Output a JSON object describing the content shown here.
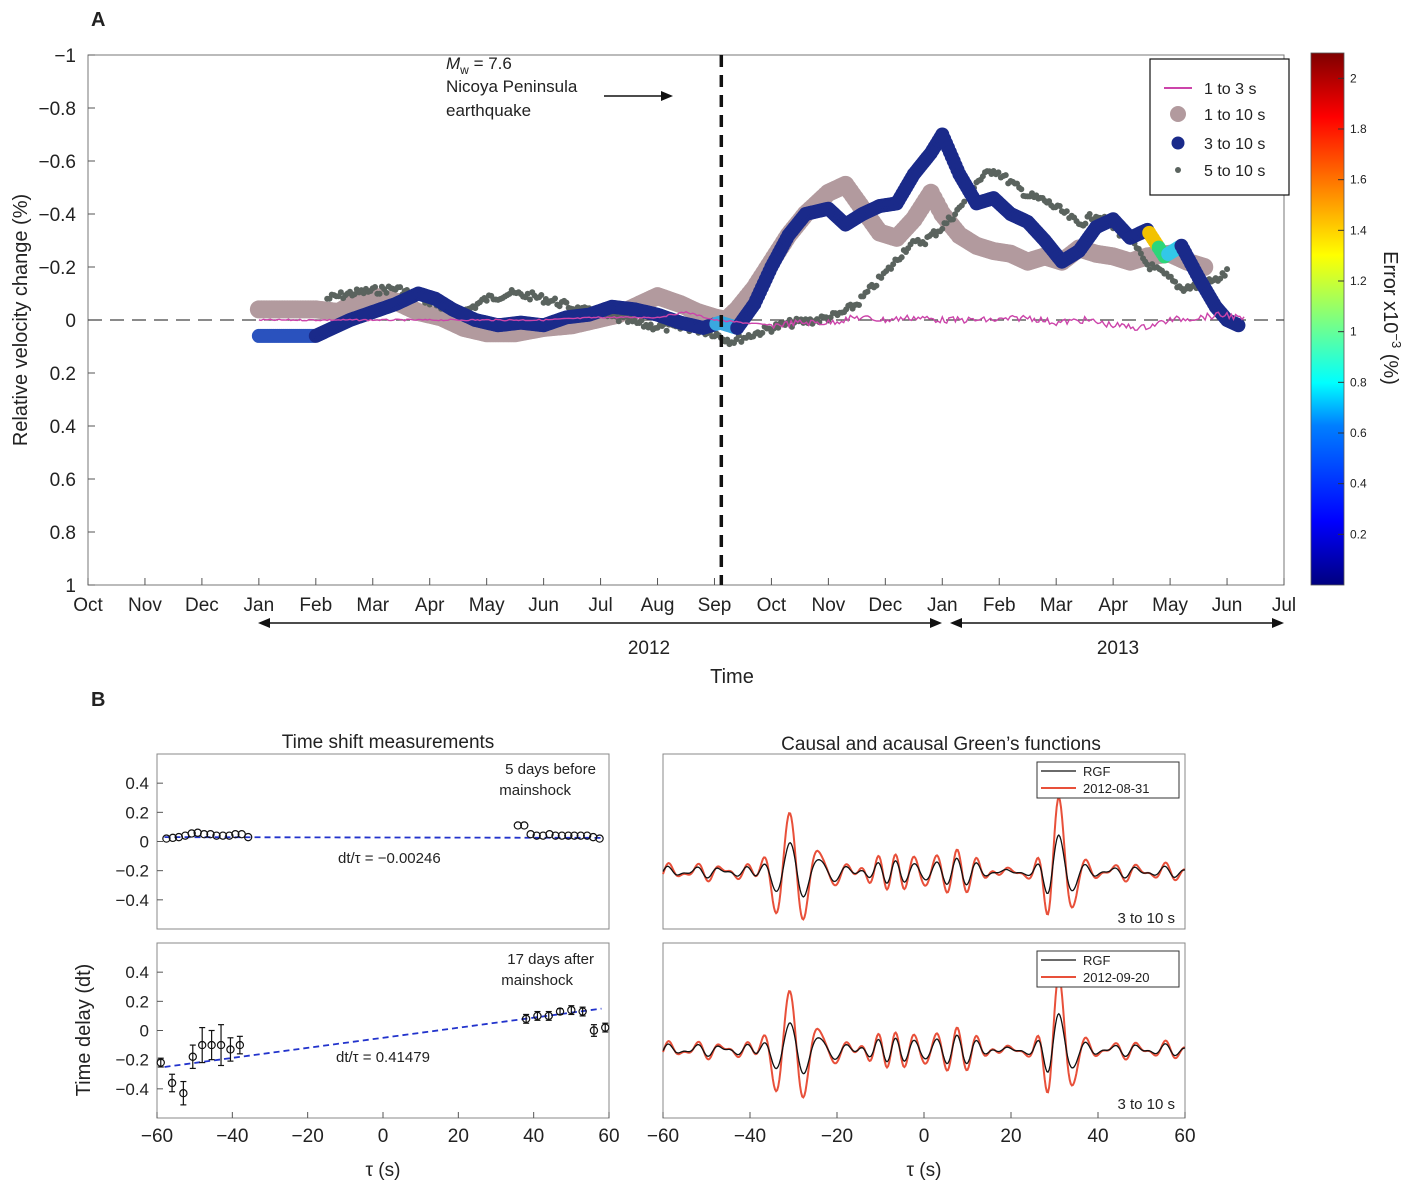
{
  "figure": {
    "panel_a_letter": "A",
    "panel_b_letter": "B"
  },
  "chart_data": [
    {
      "type": "scatter",
      "panel": "A",
      "ylabel": "Relative velocity change (%)",
      "xlabel": "Time",
      "y_inverted": true,
      "ylim": [
        1,
        -1
      ],
      "y_ticks": [
        "−1",
        "−0.8",
        "−0.6",
        "−0.4",
        "−0.2",
        "0",
        "0.2",
        "0.4",
        "0.6",
        "0.8",
        "1"
      ],
      "x_ticks": [
        "Oct",
        "Nov",
        "Dec",
        "Jan",
        "Feb",
        "Mar",
        "Apr",
        "May",
        "Jun",
        "Jul",
        "Aug",
        "Sep",
        "Oct",
        "Nov",
        "Dec",
        "Jan",
        "Feb",
        "Mar",
        "Apr",
        "May",
        "Jun",
        "Jul"
      ],
      "year_labels": [
        "2012",
        "2013"
      ],
      "event_marker": {
        "month_index": 11.12,
        "label_prefix": "M",
        "label_sub": "w",
        "label_value": " = 7.6",
        "label_line2": "Nicoya Peninsula",
        "label_line3": "earthquake"
      },
      "legend": [
        "1 to 3 s",
        "1 to 10 s",
        "3 to 10 s",
        "5 to 10 s"
      ],
      "colorbar": {
        "label": "Error x10",
        "label_exp": "−3",
        "label_unit": " (%)",
        "range": [
          0,
          2.1
        ],
        "ticks": [
          "0.2",
          "0.4",
          "0.6",
          "0.8",
          "1",
          "1.2",
          "1.4",
          "1.6",
          "1.8",
          "2"
        ]
      },
      "series": [
        {
          "name": "1 to 3 s",
          "color": "#cc44aa",
          "points": [
            [
              3.0,
              0.0
            ],
            [
              4.0,
              0.0
            ],
            [
              5.0,
              0.0
            ],
            [
              6.0,
              0.0
            ],
            [
              7.0,
              0.0
            ],
            [
              8.0,
              0.0
            ],
            [
              9.0,
              -0.01
            ],
            [
              10.0,
              -0.01
            ],
            [
              10.5,
              -0.03
            ],
            [
              11.0,
              0.0
            ],
            [
              11.5,
              0.01
            ],
            [
              12.0,
              0.02
            ],
            [
              12.5,
              0.01
            ],
            [
              13.0,
              0.01
            ],
            [
              13.5,
              -0.01
            ],
            [
              14.0,
              0.0
            ],
            [
              14.5,
              -0.01
            ],
            [
              15.0,
              0.0
            ],
            [
              15.5,
              0.0
            ],
            [
              16.0,
              0.0
            ],
            [
              16.5,
              -0.01
            ],
            [
              17.0,
              0.01
            ],
            [
              17.5,
              0.0
            ],
            [
              18.0,
              0.02
            ],
            [
              18.5,
              0.03
            ],
            [
              19.0,
              0.0
            ],
            [
              19.5,
              -0.01
            ],
            [
              20.0,
              -0.02
            ],
            [
              20.3,
              0.0
            ]
          ]
        },
        {
          "name": "1 to 10 s",
          "color": "#b29a9e",
          "points": [
            [
              3.0,
              -0.04
            ],
            [
              4.0,
              -0.04
            ],
            [
              4.4,
              -0.03
            ],
            [
              4.7,
              -0.07
            ],
            [
              5.0,
              -0.09
            ],
            [
              5.4,
              -0.07
            ],
            [
              5.8,
              -0.03
            ],
            [
              6.2,
              -0.01
            ],
            [
              6.6,
              0.03
            ],
            [
              7.0,
              0.05
            ],
            [
              7.5,
              0.05
            ],
            [
              8.0,
              0.03
            ],
            [
              8.5,
              0.02
            ],
            [
              8.9,
              0.0
            ],
            [
              9.3,
              -0.02
            ],
            [
              9.7,
              -0.06
            ],
            [
              10.0,
              -0.09
            ],
            [
              10.4,
              -0.06
            ],
            [
              10.7,
              -0.03
            ],
            [
              11.0,
              -0.01
            ],
            [
              11.2,
              0.0
            ],
            [
              11.4,
              -0.04
            ],
            [
              11.7,
              -0.12
            ],
            [
              12.0,
              -0.22
            ],
            [
              12.3,
              -0.32
            ],
            [
              12.6,
              -0.4
            ],
            [
              13.0,
              -0.48
            ],
            [
              13.3,
              -0.51
            ],
            [
              13.6,
              -0.42
            ],
            [
              13.9,
              -0.33
            ],
            [
              14.2,
              -0.31
            ],
            [
              14.5,
              -0.38
            ],
            [
              14.8,
              -0.48
            ],
            [
              15.0,
              -0.4
            ],
            [
              15.3,
              -0.32
            ],
            [
              15.6,
              -0.28
            ],
            [
              15.9,
              -0.26
            ],
            [
              16.2,
              -0.25
            ],
            [
              16.5,
              -0.22
            ],
            [
              16.8,
              -0.24
            ],
            [
              17.1,
              -0.22
            ],
            [
              17.4,
              -0.27
            ],
            [
              17.7,
              -0.25
            ],
            [
              18.0,
              -0.24
            ],
            [
              18.3,
              -0.22
            ],
            [
              18.6,
              -0.24
            ],
            [
              19.0,
              -0.25
            ],
            [
              19.3,
              -0.22
            ],
            [
              19.6,
              -0.2
            ]
          ]
        },
        {
          "name": "5 to 10 s",
          "color": "#5a635e",
          "points": [
            [
              4.2,
              -0.08
            ],
            [
              4.6,
              -0.1
            ],
            [
              5.0,
              -0.11
            ],
            [
              5.4,
              -0.12
            ],
            [
              5.8,
              -0.09
            ],
            [
              6.2,
              -0.05
            ],
            [
              6.6,
              -0.03
            ],
            [
              7.0,
              -0.08
            ],
            [
              7.4,
              -0.1
            ],
            [
              7.8,
              -0.09
            ],
            [
              8.2,
              -0.07
            ],
            [
              8.6,
              -0.04
            ],
            [
              9.0,
              -0.02
            ],
            [
              9.4,
              0.0
            ],
            [
              9.8,
              0.02
            ],
            [
              10.2,
              0.03
            ],
            [
              10.6,
              0.03
            ],
            [
              11.0,
              0.05
            ],
            [
              11.3,
              0.08
            ],
            [
              11.6,
              0.06
            ],
            [
              12.0,
              0.03
            ],
            [
              12.4,
              0.01
            ],
            [
              12.8,
              0.0
            ],
            [
              13.2,
              -0.02
            ],
            [
              13.5,
              -0.06
            ],
            [
              13.8,
              -0.13
            ],
            [
              14.1,
              -0.2
            ],
            [
              14.4,
              -0.28
            ],
            [
              14.7,
              -0.3
            ],
            [
              15.0,
              -0.35
            ],
            [
              15.3,
              -0.42
            ],
            [
              15.6,
              -0.52
            ],
            [
              15.9,
              -0.57
            ],
            [
              16.2,
              -0.52
            ],
            [
              16.5,
              -0.47
            ],
            [
              16.8,
              -0.45
            ],
            [
              17.1,
              -0.41
            ],
            [
              17.4,
              -0.36
            ],
            [
              17.7,
              -0.4
            ],
            [
              18.0,
              -0.35
            ],
            [
              18.3,
              -0.3
            ],
            [
              18.6,
              -0.21
            ],
            [
              18.9,
              -0.17
            ],
            [
              19.2,
              -0.12
            ],
            [
              19.5,
              -0.13
            ],
            [
              19.8,
              -0.15
            ],
            [
              20.0,
              -0.18
            ]
          ]
        },
        {
          "name": "3 to 10 s",
          "color": "#1a2a8a",
          "points": [
            [
              3.0,
              0.06
            ],
            [
              3.4,
              0.06
            ],
            [
              4.0,
              0.06
            ],
            [
              4.3,
              0.03
            ],
            [
              4.6,
              0.0
            ],
            [
              5.0,
              -0.03
            ],
            [
              5.4,
              -0.06
            ],
            [
              5.8,
              -0.1
            ],
            [
              6.1,
              -0.08
            ],
            [
              6.4,
              -0.04
            ],
            [
              6.8,
              0.0
            ],
            [
              7.2,
              0.02
            ],
            [
              7.6,
              0.01
            ],
            [
              8.0,
              0.02
            ],
            [
              8.4,
              -0.01
            ],
            [
              8.8,
              -0.02
            ],
            [
              9.2,
              -0.05
            ],
            [
              9.6,
              -0.04
            ],
            [
              10.0,
              -0.02
            ],
            [
              10.4,
              0.01
            ],
            [
              10.8,
              0.03
            ],
            [
              11.1,
              0.01
            ],
            [
              11.4,
              0.03
            ],
            [
              11.7,
              -0.06
            ],
            [
              12.0,
              -0.2
            ],
            [
              12.3,
              -0.32
            ],
            [
              12.6,
              -0.4
            ],
            [
              13.0,
              -0.42
            ],
            [
              13.3,
              -0.36
            ],
            [
              13.6,
              -0.4
            ],
            [
              13.9,
              -0.43
            ],
            [
              14.2,
              -0.44
            ],
            [
              14.5,
              -0.55
            ],
            [
              14.8,
              -0.63
            ],
            [
              15.0,
              -0.7
            ],
            [
              15.3,
              -0.55
            ],
            [
              15.6,
              -0.44
            ],
            [
              15.9,
              -0.46
            ],
            [
              16.2,
              -0.4
            ],
            [
              16.5,
              -0.37
            ],
            [
              16.8,
              -0.3
            ],
            [
              17.1,
              -0.22
            ],
            [
              17.4,
              -0.26
            ],
            [
              17.7,
              -0.35
            ],
            [
              18.0,
              -0.38
            ],
            [
              18.3,
              -0.31
            ],
            [
              18.6,
              -0.34
            ],
            [
              18.9,
              -0.24
            ],
            [
              19.2,
              -0.28
            ],
            [
              19.5,
              -0.16
            ],
            [
              19.8,
              -0.05
            ],
            [
              20.0,
              0.0
            ],
            [
              20.2,
              0.02
            ]
          ]
        }
      ]
    },
    {
      "type": "scatter",
      "panel": "B-top-left",
      "title": "Time shift measurements",
      "annotation_line1": "5 days before",
      "annotation_line2": "mainshock",
      "fit_label": "dt/τ = −0.00246",
      "slope": -0.00246,
      "ylim": [
        -0.6,
        0.6
      ],
      "xlim": [
        -60,
        60
      ],
      "y_ticks": [
        "0.4",
        "0.2",
        "0",
        "−0.2",
        "−0.4"
      ],
      "points": [
        [
          -57.5,
          0.02
        ],
        [
          -55.8,
          0.025
        ],
        [
          -54.2,
          0.03
        ],
        [
          -52.5,
          0.04
        ],
        [
          -50.8,
          0.055
        ],
        [
          -49.2,
          0.06
        ],
        [
          -47.5,
          0.05
        ],
        [
          -45.8,
          0.05
        ],
        [
          -44.2,
          0.04
        ],
        [
          -42.5,
          0.04
        ],
        [
          -40.8,
          0.04
        ],
        [
          -39.2,
          0.05
        ],
        [
          -37.5,
          0.05
        ],
        [
          -35.8,
          0.03
        ],
        [
          35.8,
          0.11
        ],
        [
          37.5,
          0.11
        ],
        [
          39.2,
          0.05
        ],
        [
          40.8,
          0.04
        ],
        [
          42.5,
          0.04
        ],
        [
          44.2,
          0.05
        ],
        [
          45.8,
          0.04
        ],
        [
          47.5,
          0.04
        ],
        [
          49.2,
          0.04
        ],
        [
          50.8,
          0.04
        ],
        [
          52.5,
          0.04
        ],
        [
          54.2,
          0.04
        ],
        [
          55.8,
          0.03
        ],
        [
          57.5,
          0.02
        ]
      ]
    },
    {
      "type": "scatter",
      "panel": "B-bottom-left",
      "annotation_line1": "17 days after",
      "annotation_line2": "mainshock",
      "fit_label": "dt/τ = 0.41479",
      "slope": 0.41479,
      "ylim": [
        -0.6,
        0.6
      ],
      "xlim": [
        -60,
        60
      ],
      "ylabel": "Time delay (dt)",
      "xlabel": "τ (s)",
      "y_ticks": [
        "0.4",
        "0.2",
        "0",
        "−0.2",
        "−0.4"
      ],
      "x_ticks": [
        "−60",
        "−40",
        "−20",
        "0",
        "20",
        "40",
        "60"
      ],
      "points": [
        [
          -59,
          -0.22,
          0.03
        ],
        [
          -56,
          -0.36,
          0.06
        ],
        [
          -53,
          -0.43,
          0.08
        ],
        [
          -50.5,
          -0.18,
          0.08
        ],
        [
          -48,
          -0.1,
          0.12
        ],
        [
          -45.5,
          -0.1,
          0.1
        ],
        [
          -43,
          -0.1,
          0.14
        ],
        [
          -40.5,
          -0.13,
          0.08
        ],
        [
          -38,
          -0.1,
          0.06
        ],
        [
          38,
          0.08,
          0.03
        ],
        [
          41,
          0.1,
          0.03
        ],
        [
          44,
          0.1,
          0.03
        ],
        [
          47,
          0.13,
          0.02
        ],
        [
          50,
          0.14,
          0.03
        ],
        [
          53,
          0.13,
          0.03
        ],
        [
          56,
          0.0,
          0.04
        ],
        [
          59,
          0.02,
          0.03
        ]
      ]
    },
    {
      "type": "line",
      "panel": "B-top-right",
      "title": "Causal and acausal Green’s functions",
      "legend": [
        "RGF",
        "2012-08-31"
      ],
      "corner_label": "3 to 10 s"
    },
    {
      "type": "line",
      "panel": "B-bottom-right",
      "legend": [
        "RGF",
        "2012-09-20"
      ],
      "corner_label": "3 to 10 s",
      "xlabel": "τ (s)",
      "x_ticks": [
        "−60",
        "−40",
        "−20",
        "0",
        "20",
        "40",
        "60"
      ]
    }
  ]
}
